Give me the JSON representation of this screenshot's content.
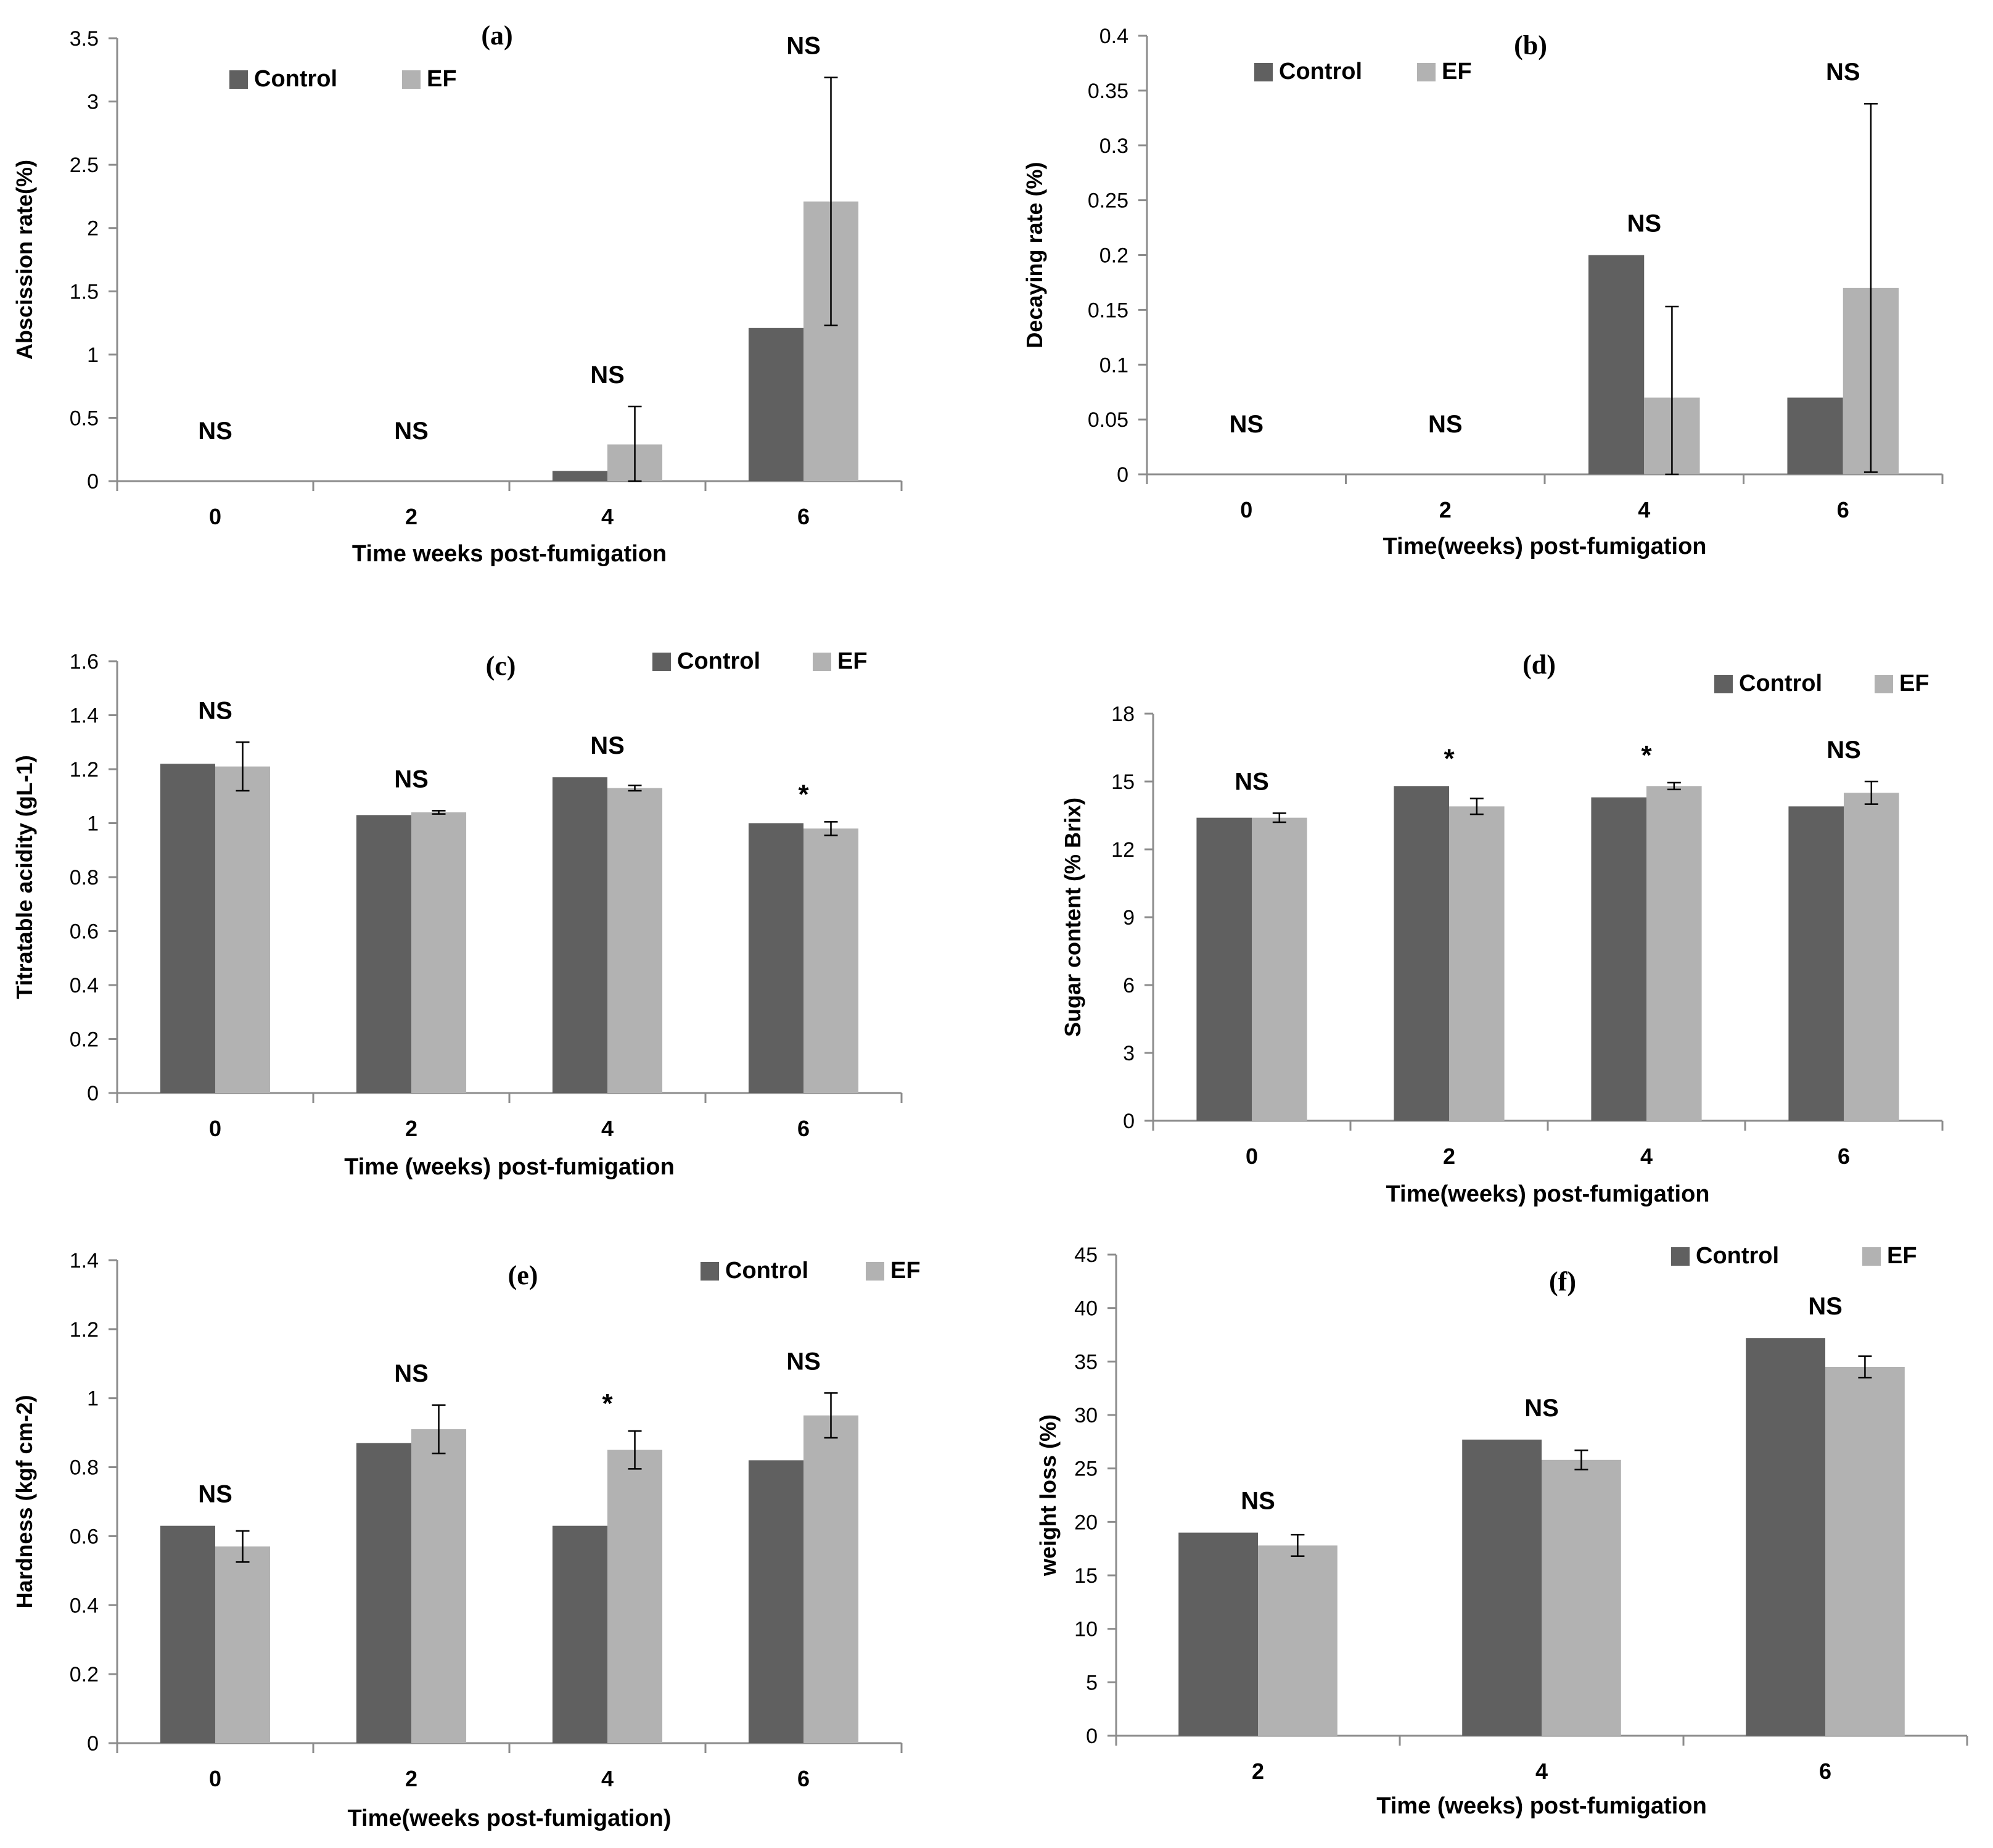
{
  "colors": {
    "control": "#606060",
    "ef": "#b2b2b2",
    "axis": "#8c8c8c",
    "error_bar": "#000000"
  },
  "chart_data": [
    {
      "type": "bar",
      "panel_label": "(a)",
      "categories": [
        "0",
        "2",
        "4",
        "6"
      ],
      "series": [
        {
          "name": "Control",
          "values": [
            0,
            0,
            0.08,
            1.21
          ],
          "errors": [
            null,
            null,
            null,
            null
          ]
        },
        {
          "name": "EF",
          "values": [
            0,
            0,
            0.29,
            2.21
          ],
          "errors": [
            null,
            null,
            0.3,
            0.98
          ]
        }
      ],
      "significance": [
        "NS",
        "NS",
        "NS",
        "NS"
      ],
      "xlabel": "Time weeks post-fumigation",
      "ylabel": "Abscission rate(%)",
      "ylim": [
        0,
        3.5
      ],
      "yticks": [
        "0",
        "0.5",
        "1",
        "1.5",
        "2",
        "2.5",
        "3",
        "3.5"
      ],
      "legend": "top-left",
      "grid": false
    },
    {
      "type": "bar",
      "panel_label": "(b)",
      "categories": [
        "0",
        "2",
        "4",
        "6"
      ],
      "series": [
        {
          "name": "Control",
          "values": [
            0,
            0,
            0.2,
            0.07
          ],
          "errors": [
            null,
            null,
            null,
            null
          ]
        },
        {
          "name": "EF",
          "values": [
            0,
            0,
            0.07,
            0.17
          ],
          "errors": [
            null,
            null,
            0.083,
            0.168
          ]
        }
      ],
      "significance": [
        "NS",
        "NS",
        "NS",
        "NS"
      ],
      "xlabel": "Time(weeks) post-fumigation",
      "ylabel": "Decaying rate (%)",
      "ylim": [
        0,
        0.4
      ],
      "yticks": [
        "0",
        "0.05",
        "0.1",
        "0.15",
        "0.2",
        "0.25",
        "0.3",
        "0.35",
        "0.4"
      ],
      "legend": "top-left",
      "grid": false
    },
    {
      "type": "bar",
      "panel_label": "(c)",
      "categories": [
        "0",
        "2",
        "4",
        "6"
      ],
      "series": [
        {
          "name": "Control",
          "values": [
            1.22,
            1.03,
            1.17,
            1.0
          ],
          "errors": [
            null,
            null,
            null,
            null
          ]
        },
        {
          "name": "EF",
          "values": [
            1.21,
            1.04,
            1.13,
            0.98
          ],
          "errors": [
            0.09,
            0.006,
            0.01,
            0.025
          ]
        }
      ],
      "significance": [
        "NS",
        "NS",
        "NS",
        "*"
      ],
      "xlabel": "Time (weeks) post-fumigation",
      "ylabel": "Titratable acidity (gL-1)",
      "ylim": [
        0,
        1.6
      ],
      "yticks": [
        "0",
        "0.2",
        "0.4",
        "0.6",
        "0.8",
        "1",
        "1.2",
        "1.4",
        "1.6"
      ],
      "legend": "top-right",
      "grid": false
    },
    {
      "type": "bar",
      "panel_label": "(d)",
      "categories": [
        "0",
        "2",
        "4",
        "6"
      ],
      "series": [
        {
          "name": "Control",
          "values": [
            13.4,
            14.8,
            14.3,
            13.9
          ],
          "errors": [
            null,
            null,
            null,
            null
          ]
        },
        {
          "name": "EF",
          "values": [
            13.4,
            13.9,
            14.8,
            14.5
          ],
          "errors": [
            0.2,
            0.35,
            0.15,
            0.5
          ]
        }
      ],
      "significance": [
        "NS",
        "*",
        "*",
        "NS"
      ],
      "xlabel": "Time(weeks) post-fumigation",
      "ylabel": "Sugar content (% Brix)",
      "ylim": [
        0,
        18
      ],
      "yticks": [
        "0",
        "3",
        "6",
        "9",
        "12",
        "15",
        "18"
      ],
      "legend": "top-right",
      "grid": false
    },
    {
      "type": "bar",
      "panel_label": "(e)",
      "categories": [
        "0",
        "2",
        "4",
        "6"
      ],
      "series": [
        {
          "name": "Control",
          "values": [
            0.63,
            0.87,
            0.63,
            0.82
          ],
          "errors": [
            null,
            null,
            null,
            null
          ]
        },
        {
          "name": "EF",
          "values": [
            0.57,
            0.91,
            0.85,
            0.95
          ],
          "errors": [
            0.045,
            0.07,
            0.055,
            0.065
          ]
        }
      ],
      "significance": [
        "NS",
        "NS",
        "*",
        "NS"
      ],
      "xlabel": "Time(weeks post-fumigation)",
      "ylabel": "Hardness (kgf cm-2)",
      "ylim": [
        0,
        1.4
      ],
      "yticks": [
        "0",
        "0.2",
        "0.4",
        "0.6",
        "0.8",
        "1",
        "1.2",
        "1.4"
      ],
      "legend": "top-right",
      "grid": false
    },
    {
      "type": "bar",
      "panel_label": "(f)",
      "categories": [
        "2",
        "4",
        "6"
      ],
      "series": [
        {
          "name": "Control",
          "values": [
            19.0,
            27.7,
            37.2
          ],
          "errors": [
            null,
            null,
            null
          ]
        },
        {
          "name": "EF",
          "values": [
            17.8,
            25.8,
            34.5
          ],
          "errors": [
            1.0,
            0.9,
            1.0
          ]
        }
      ],
      "significance": [
        "NS",
        "NS",
        "NS"
      ],
      "xlabel": "Time (weeks) post-fumigation",
      "ylabel": "weight loss (%)",
      "ylim": [
        0,
        45
      ],
      "yticks": [
        "0",
        "5",
        "10",
        "15",
        "20",
        "25",
        "30",
        "35",
        "40",
        "45"
      ],
      "legend": "top-right",
      "grid": false
    }
  ]
}
